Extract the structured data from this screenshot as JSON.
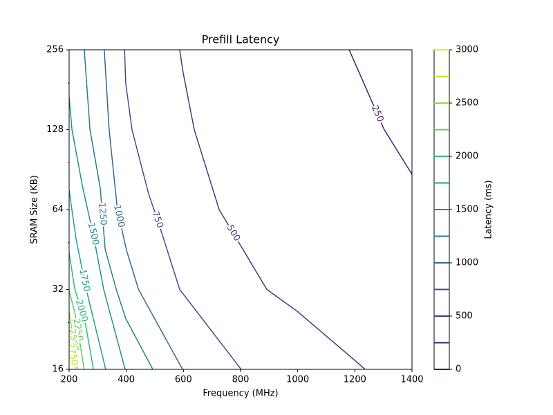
{
  "chart_data": {
    "type": "contour",
    "title": "Prefill Latency",
    "xlabel": "Frequency (MHz)",
    "ylabel": "SRAM Size (KB)",
    "xlim": [
      200,
      1400
    ],
    "xticks": [
      200,
      400,
      600,
      800,
      1000,
      1200,
      1400
    ],
    "ylim": [
      16,
      256
    ],
    "yticks": [
      16,
      32,
      64,
      128,
      256
    ],
    "yscale": "log2",
    "yminor_ticks": [
      24,
      48,
      96,
      192
    ],
    "series": [
      {
        "level": 250,
        "color": "#481c6e",
        "x": [
          1180,
          1303,
          1400
        ],
        "y": [
          256,
          128,
          86.9
        ]
      },
      {
        "level": 500,
        "color": "#453781",
        "x": [
          587,
          599,
          638,
          725,
          892,
          998,
          1197,
          1236
        ],
        "y": [
          256,
          210,
          128,
          64,
          32,
          26.5,
          17.4,
          16
        ]
      },
      {
        "level": 750,
        "color": "#3b528b",
        "x": [
          394,
          398,
          420,
          478,
          519,
          587,
          802
        ],
        "y": [
          256,
          192,
          128,
          73.5,
          54.4,
          32,
          16
        ]
      },
      {
        "level": 1000,
        "color": "#31688e",
        "x": [
          323,
          340,
          369,
          401,
          443,
          597
        ],
        "y": [
          256,
          128,
          64,
          44.9,
          32,
          16
        ]
      },
      {
        "level": 1250,
        "color": "#287c8e",
        "x": [
          253,
          273,
          309,
          326,
          365,
          398,
          493
        ],
        "y": [
          256,
          128,
          77,
          45.4,
          32,
          24.9,
          16
        ]
      },
      {
        "level": 1500,
        "color": "#21918c",
        "x": [
          200,
          210,
          248,
          285,
          321,
          396
        ],
        "y": [
          170,
          128,
          77,
          51.2,
          32,
          16
        ]
      },
      {
        "level": 1750,
        "color": "#1fa088",
        "x": [
          200,
          224,
          260,
          328
        ],
        "y": [
          75.7,
          49.7,
          32,
          16
        ]
      },
      {
        "level": 2000,
        "color": "#35b779",
        "x": [
          200,
          219,
          258,
          285
        ],
        "y": [
          44.1,
          32.4,
          23.5,
          16
        ]
      },
      {
        "level": 2250,
        "color": "#5ec962",
        "x": [
          200,
          219,
          253
        ],
        "y": [
          31.6,
          26.5,
          16
        ]
      },
      {
        "level": 2500,
        "color": "#90d743",
        "x": [
          200,
          229
        ],
        "y": [
          26.5,
          16
        ]
      },
      {
        "level": 2750,
        "color": "#c8e020",
        "x": [
          200,
          222
        ],
        "y": [
          20.8,
          16
        ]
      }
    ],
    "colorbar": {
      "label": "Latency (ms)",
      "ylim": [
        0,
        3000
      ],
      "yticks": [
        0,
        500,
        1000,
        1500,
        2000,
        2500,
        3000
      ],
      "levels": [
        0,
        250,
        500,
        750,
        1000,
        1250,
        1500,
        1750,
        2000,
        2250,
        2500,
        2750,
        3000
      ],
      "colors": [
        "#440154",
        "#481c6e",
        "#453781",
        "#3b528b",
        "#31688e",
        "#287c8e",
        "#21918c",
        "#1fa088",
        "#35b779",
        "#5ec962",
        "#90d743",
        "#c8e020",
        "#fde725"
      ]
    }
  }
}
